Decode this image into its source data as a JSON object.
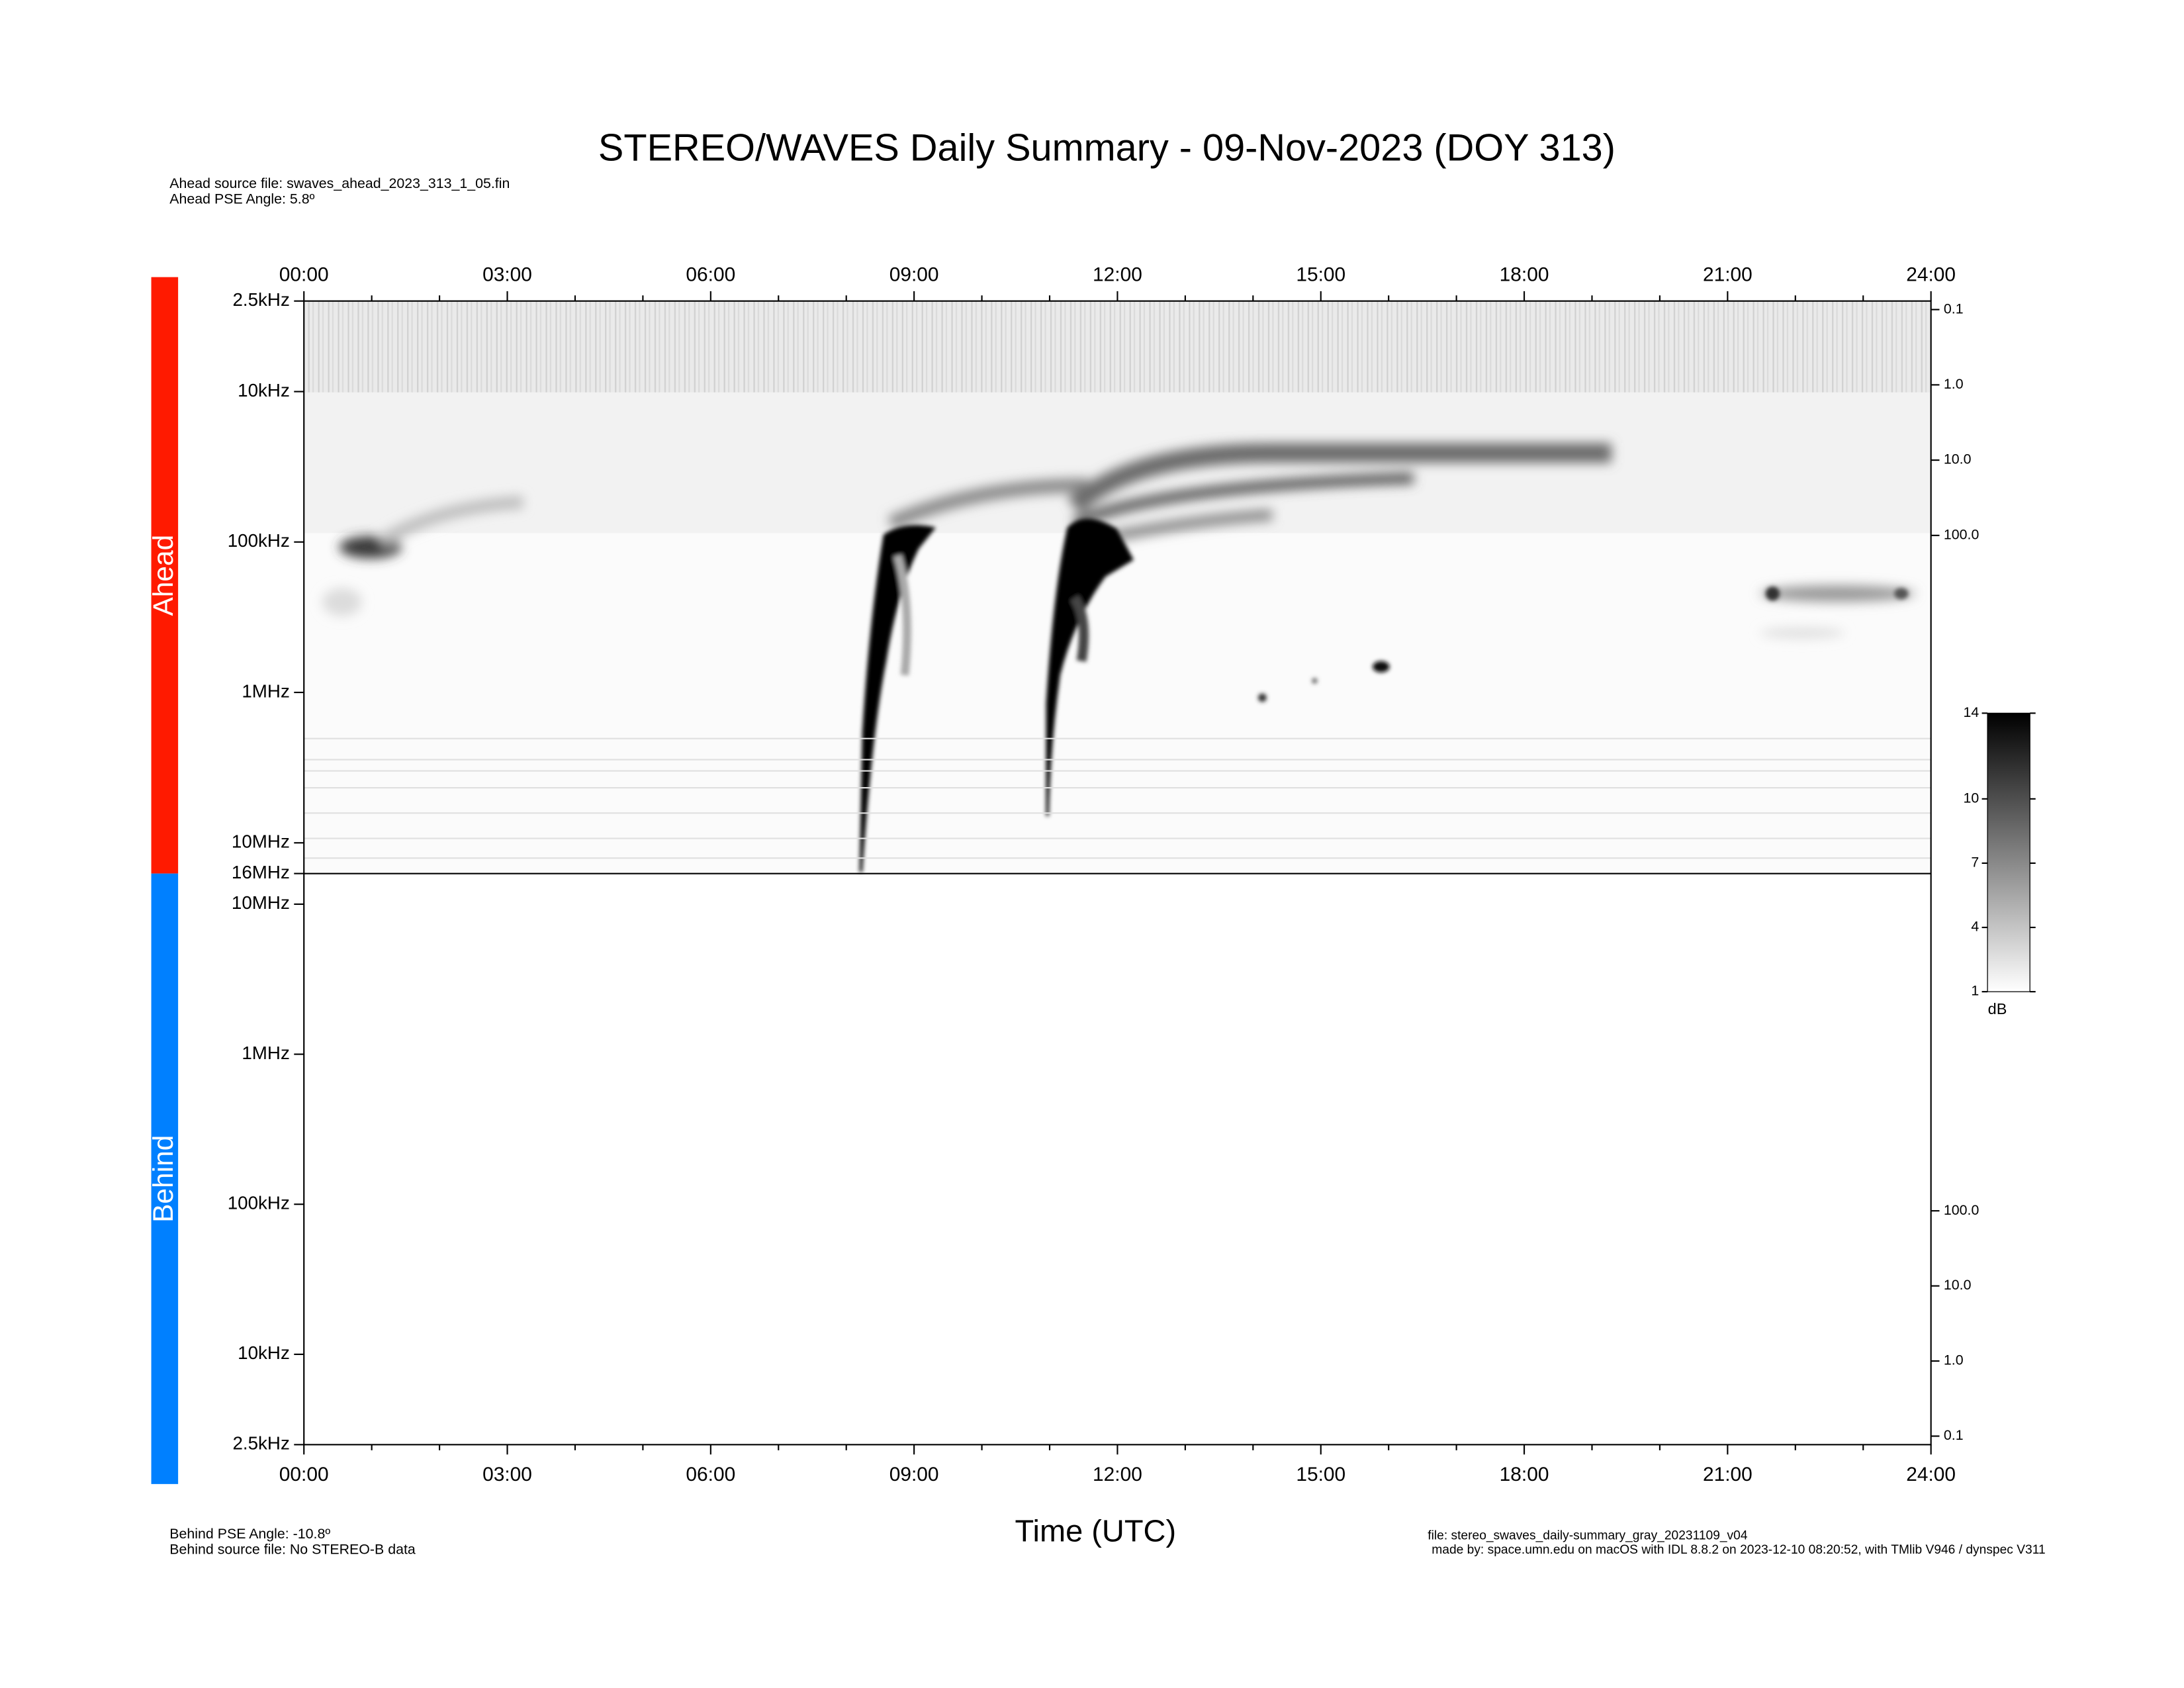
{
  "chart_data": {
    "type": "spectrogram",
    "title": "STEREO/WAVES Daily Summary - 09-Nov-2023 (DOY 313)",
    "ahead_source": "Ahead source file: swaves_ahead_2023_313_1_05.fin",
    "ahead_angle": "Ahead PSE Angle:    5.8º",
    "behind_angle": "Behind PSE Angle:  -10.8º",
    "behind_source": "Behind source file: No STEREO-B data",
    "file": "file: stereo_swaves_daily-summary_gray_20231109_v04",
    "made_by": "made by: space.umn.edu on macOS with IDL 8.8.2 on 2023-12-10 08:20:52, with TMlib V946 / dynspec V311",
    "xlabel": "Time (UTC)",
    "xlim": [
      0,
      24
    ],
    "xticks": [
      {
        "value": 0,
        "label": "00:00"
      },
      {
        "value": 3,
        "label": "03:00"
      },
      {
        "value": 6,
        "label": "06:00"
      },
      {
        "value": 9,
        "label": "09:00"
      },
      {
        "value": 12,
        "label": "12:00"
      },
      {
        "value": 15,
        "label": "15:00"
      },
      {
        "value": 18,
        "label": "18:00"
      },
      {
        "value": 21,
        "label": "21:00"
      },
      {
        "value": 24,
        "label": "24:00"
      }
    ],
    "xminor": [
      1,
      2,
      4,
      5,
      7,
      8,
      10,
      11,
      13,
      14,
      16,
      17,
      19,
      20,
      22,
      23
    ],
    "yscale": "log",
    "panels": [
      {
        "name": "Ahead",
        "color": "#ff1a00",
        "reversed": true,
        "ylim": [
          2.5,
          16000
        ],
        "yticks": [
          {
            "value": 2.5,
            "label": "2.5kHz"
          },
          {
            "value": 10,
            "label": "10kHz"
          },
          {
            "value": 100,
            "label": "100kHz"
          },
          {
            "value": 1000,
            "label": "1MHz"
          },
          {
            "value": 10000,
            "label": "10MHz"
          },
          {
            "value": 16000,
            "label": "16MHz"
          }
        ],
        "y2lim": [
          0.077,
          3100000
        ],
        "y2ticks": [
          {
            "value": 0.1,
            "label": "0.1"
          },
          {
            "value": 1,
            "label": "1.0"
          },
          {
            "value": 10,
            "label": "10.0"
          },
          {
            "value": 100,
            "label": "100.0"
          }
        ]
      },
      {
        "name": "Behind",
        "color": "#0080ff",
        "reversed": false,
        "ylim": [
          2.5,
          16000
        ],
        "yticks": [
          {
            "value": 2.5,
            "label": "2.5kHz"
          },
          {
            "value": 10,
            "label": "10kHz"
          },
          {
            "value": 100,
            "label": "100kHz"
          },
          {
            "value": 1000,
            "label": "1MHz"
          },
          {
            "value": 10000,
            "label": "10MHz"
          }
        ],
        "y2lim": [
          0.077,
          3100000
        ],
        "y2ticks": [
          {
            "value": 0.1,
            "label": "0.1"
          },
          {
            "value": 1,
            "label": "1.0"
          },
          {
            "value": 10,
            "label": "10.0"
          },
          {
            "value": 100,
            "label": "100.0"
          }
        ]
      }
    ],
    "colorbar": {
      "label": "dB",
      "lim": [
        1,
        14
      ],
      "ticks": [
        1,
        4,
        7,
        10,
        14
      ]
    }
  }
}
